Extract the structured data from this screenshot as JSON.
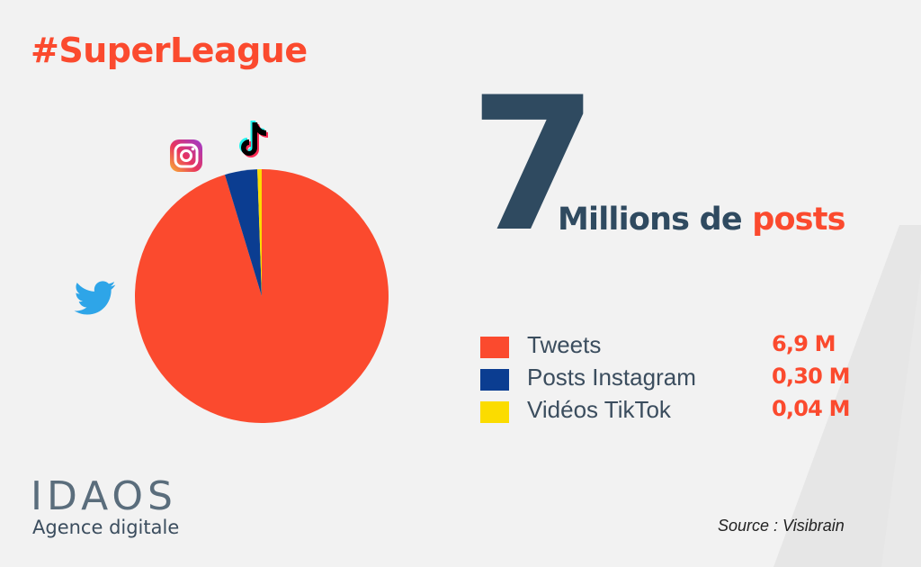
{
  "header": {
    "hashtag": "#SuperLeague"
  },
  "headline": {
    "number": "7",
    "text_part1": "Millions de ",
    "text_part2": "posts"
  },
  "legend": [
    {
      "label": "Tweets",
      "value": "6,9 M"
    },
    {
      "label": "Posts Instagram",
      "value": "0,30 M"
    },
    {
      "label": "Vidéos TikTok",
      "value": "0,04 M"
    }
  ],
  "logo": {
    "name": "IDAOS",
    "tagline": "Agence digitale"
  },
  "source": "Source : Visibrain",
  "colors": {
    "accent_red": "#fb4a2e",
    "dark_slate": "#2f4a60",
    "instagram_blue": "#0b3d91",
    "tiktok_yellow": "#fbdc00",
    "twitter_blue": "#1da1f2",
    "background": "#f2f2f2"
  },
  "icons": [
    "instagram-icon",
    "tiktok-icon",
    "twitter-icon"
  ],
  "chart_data": {
    "type": "pie",
    "categories": [
      "Tweets",
      "Posts Instagram",
      "Vidéos TikTok"
    ],
    "values": [
      6.9,
      0.3,
      0.04
    ],
    "unit": "M",
    "colors": [
      "#fb4a2e",
      "#0b3d91",
      "#fbdc00"
    ],
    "start": "top",
    "direction": "counterclockwise-from-top for small slices"
  }
}
